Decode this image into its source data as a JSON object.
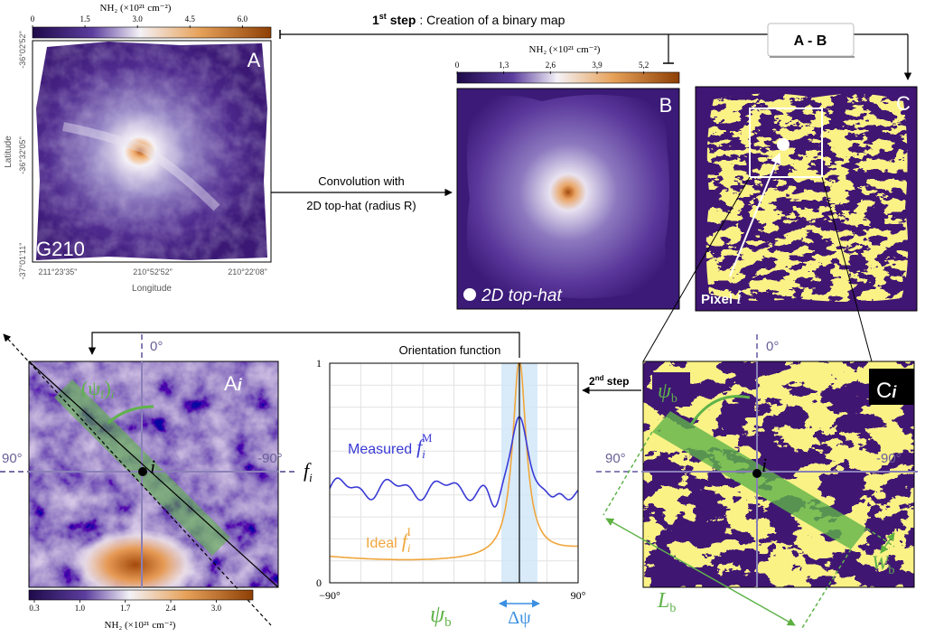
{
  "step1": {
    "num": "1",
    "sup": "st",
    "word": " step",
    "text": " : Creation of a binary map"
  },
  "operation": "A - B",
  "convolution": [
    "Convolution with",
    "2D top-hat (radius R)"
  ],
  "panel_a": {
    "label": "A",
    "object": "G210",
    "colorbar_label": "NH₂ (×10²¹ cm⁻²)",
    "colorbar_ticks": [
      "0",
      "1.5",
      "3.0",
      "4.5",
      "6.0"
    ],
    "y_label": "Latitude",
    "y_ticks": [
      "-36°02'52\"",
      "-36°32'05\"",
      "-37°01'11\""
    ],
    "x_label": "Longitude",
    "x_ticks": [
      "211°23'35\"",
      "210°52'52\"",
      "210°22'08\""
    ]
  },
  "panel_b": {
    "label": "B",
    "colorbar_label": "NH₂ (×10²¹ cm⁻²)",
    "colorbar_ticks": [
      "0",
      "1,3",
      "2,6",
      "3,9",
      "5,2"
    ],
    "kernel": "2D top-hat"
  },
  "panel_c": {
    "label": "C",
    "pixel": "Pixel",
    "pixel_index": "i"
  },
  "panel_ai": {
    "label": "A",
    "index": "i",
    "angle_top": "0°",
    "angle_left": "90°",
    "angle_right": "-90°",
    "psi_label": [
      "(ψ",
      "f",
      ")",
      "i"
    ],
    "pixel_index": "i",
    "colorbar_label": "NH₂ (×10²¹ cm⁻²)",
    "colorbar_ticks": [
      "0.3",
      "1.0",
      "1.7",
      "2.4",
      "3.0"
    ]
  },
  "orientation_plot": {
    "title": "Orientation function",
    "y_ticks": [
      "1",
      "0"
    ],
    "x_ticks": [
      "−90°",
      "90°"
    ],
    "y_label": [
      "f",
      "i"
    ],
    "measured": "Measured",
    "measured_symbol": [
      "f",
      "i",
      "M"
    ],
    "ideal": "Ideal",
    "ideal_symbol": [
      "f",
      "i",
      "I"
    ],
    "psi_b": [
      "ψ",
      "b"
    ],
    "delta_psi": "Δψ"
  },
  "step2": {
    "num": "2",
    "sup": "nd",
    "word": " step"
  },
  "panel_ci": {
    "label": "C",
    "index": "i",
    "angle_top": "0°",
    "angle_left": "90°",
    "angle_right": "-90°",
    "pixel_index": "i",
    "psi_b": [
      "ψ",
      "b"
    ],
    "length": [
      "L",
      "b"
    ],
    "width": [
      "W",
      "b"
    ]
  }
}
